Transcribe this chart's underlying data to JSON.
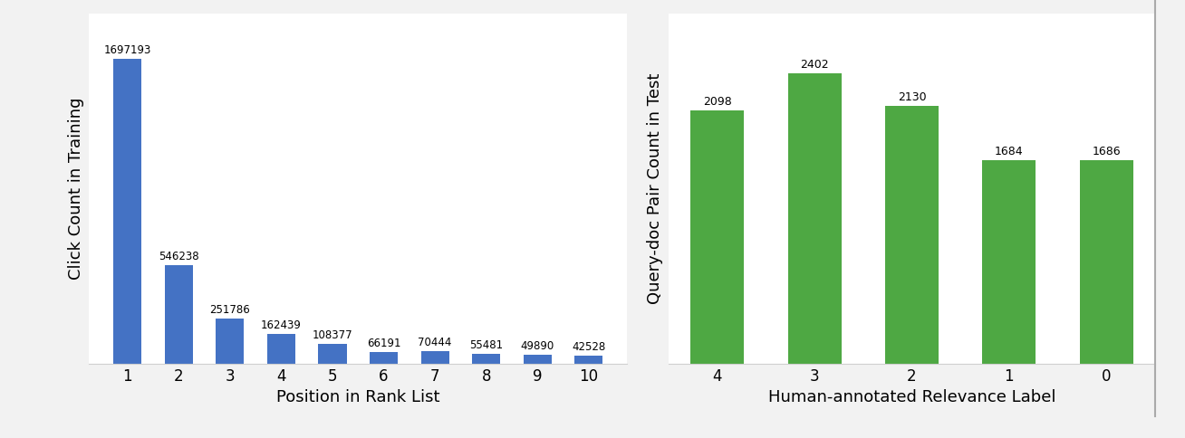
{
  "left": {
    "categories": [
      "1",
      "2",
      "3",
      "4",
      "5",
      "6",
      "7",
      "8",
      "9",
      "10"
    ],
    "values": [
      1697193,
      546238,
      251786,
      162439,
      108377,
      66191,
      70444,
      55481,
      49890,
      42528
    ],
    "bar_color": "#4472C4",
    "xlabel": "Position in Rank List",
    "ylabel": "Click Count in Training",
    "ylim": [
      0,
      1950000
    ],
    "annotation_fontsize": 8.5
  },
  "right": {
    "categories": [
      "4",
      "3",
      "2",
      "1",
      "0"
    ],
    "values": [
      2098,
      2402,
      2130,
      1684,
      1686
    ],
    "bar_color": "#4EA843",
    "xlabel": "Human-annotated Relevance Label",
    "ylabel": "Query-doc Pair Count in Test",
    "ylim": [
      0,
      2900
    ],
    "annotation_fontsize": 9
  },
  "background_color": "#ffffff",
  "panel_bg": "#f2f2f2",
  "grid_color": "#d0d0d0",
  "label_fontsize": 13,
  "tick_fontsize": 12
}
